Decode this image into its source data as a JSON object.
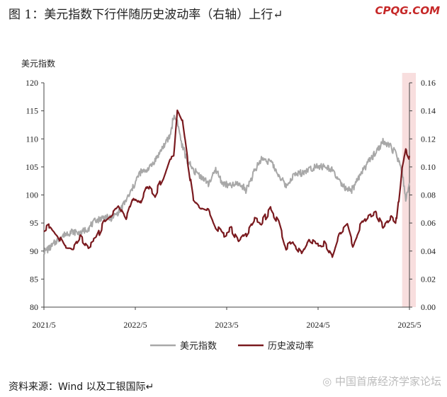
{
  "header": {
    "title": "图 1：美元指数下行伴随历史波动率（右轴）上行↵",
    "brand": "CPQG.COM"
  },
  "footer": {
    "source": "资料来源：Wind 以及工银国际↵",
    "watermark": "◎ 中国首席经济学家论坛"
  },
  "colors": {
    "dxy": "#a8a8a8",
    "vol": "#7a1a1f",
    "highlight": "#f8dede",
    "axis": "#444444"
  },
  "chart_data": {
    "type": "line",
    "left_axis_title": "美元指数",
    "left_ylim": [
      80,
      120
    ],
    "left_ticks": [
      "80",
      "85",
      "90",
      "95",
      "100",
      "105",
      "110",
      "115",
      "120"
    ],
    "right_ylim": [
      0,
      0.16
    ],
    "right_ticks": [
      "0.00",
      "0.02",
      "0.04",
      "0.06",
      "0.08",
      "0.10",
      "0.12",
      "0.14",
      "0.16"
    ],
    "x_ticks": [
      "2021/5",
      "2022/5",
      "2023/5",
      "2024/5",
      "2025/5"
    ],
    "x_tick_values": [
      2021.33,
      2022.33,
      2023.33,
      2024.33,
      2025.33
    ],
    "xlim": [
      2021.33,
      2025.33
    ],
    "highlight_range": [
      2025.25,
      2025.4
    ],
    "series": [
      {
        "name": "美元指数",
        "axis": "left",
        "x": [
          2021.33,
          2021.4,
          2021.48,
          2021.56,
          2021.65,
          2021.73,
          2021.81,
          2021.9,
          2021.98,
          2022.06,
          2022.15,
          2022.23,
          2022.31,
          2022.38,
          2022.46,
          2022.54,
          2022.63,
          2022.71,
          2022.75,
          2022.79,
          2022.84,
          2022.9,
          2022.96,
          2023.04,
          2023.13,
          2023.21,
          2023.29,
          2023.38,
          2023.46,
          2023.54,
          2023.63,
          2023.71,
          2023.81,
          2023.9,
          2023.98,
          2024.06,
          2024.15,
          2024.23,
          2024.31,
          2024.4,
          2024.48,
          2024.56,
          2024.65,
          2024.71,
          2024.79,
          2024.88,
          2024.96,
          2025.04,
          2025.13,
          2025.19,
          2025.25,
          2025.29,
          2025.33
        ],
        "values": [
          90.0,
          90.5,
          92.0,
          93.0,
          93.5,
          93.2,
          94.0,
          95.5,
          96.0,
          95.8,
          97.0,
          99.0,
          101.5,
          104.0,
          104.5,
          106.0,
          108.5,
          110.5,
          114.0,
          113.0,
          109.0,
          106.0,
          104.5,
          103.5,
          102.0,
          104.5,
          102.0,
          101.6,
          102.0,
          101.0,
          104.0,
          106.5,
          106.0,
          103.5,
          101.5,
          103.5,
          104.0,
          104.5,
          105.2,
          105.0,
          104.5,
          102.5,
          100.7,
          101.0,
          103.5,
          106.0,
          107.5,
          109.5,
          108.5,
          107.0,
          104.0,
          99.5,
          101.5
        ]
      },
      {
        "name": "历史波动率",
        "axis": "right",
        "x": [
          2021.33,
          2021.4,
          2021.48,
          2021.56,
          2021.65,
          2021.73,
          2021.81,
          2021.9,
          2021.98,
          2022.06,
          2022.15,
          2022.23,
          2022.31,
          2022.38,
          2022.46,
          2022.54,
          2022.63,
          2022.71,
          2022.75,
          2022.79,
          2022.84,
          2022.9,
          2022.96,
          2023.04,
          2023.13,
          2023.21,
          2023.29,
          2023.38,
          2023.46,
          2023.54,
          2023.63,
          2023.71,
          2023.81,
          2023.9,
          2023.98,
          2024.06,
          2024.15,
          2024.23,
          2024.31,
          2024.4,
          2024.48,
          2024.56,
          2024.65,
          2024.71,
          2024.79,
          2024.88,
          2024.96,
          2025.04,
          2025.13,
          2025.19,
          2025.25,
          2025.29,
          2025.33
        ],
        "values": [
          0.055,
          0.058,
          0.052,
          0.043,
          0.042,
          0.05,
          0.044,
          0.048,
          0.06,
          0.065,
          0.072,
          0.062,
          0.078,
          0.073,
          0.086,
          0.08,
          0.092,
          0.107,
          0.108,
          0.142,
          0.135,
          0.105,
          0.078,
          0.072,
          0.07,
          0.058,
          0.052,
          0.055,
          0.046,
          0.052,
          0.062,
          0.06,
          0.07,
          0.06,
          0.042,
          0.046,
          0.038,
          0.048,
          0.044,
          0.045,
          0.036,
          0.052,
          0.058,
          0.045,
          0.057,
          0.065,
          0.068,
          0.058,
          0.065,
          0.061,
          0.1,
          0.113,
          0.107
        ]
      }
    ]
  }
}
